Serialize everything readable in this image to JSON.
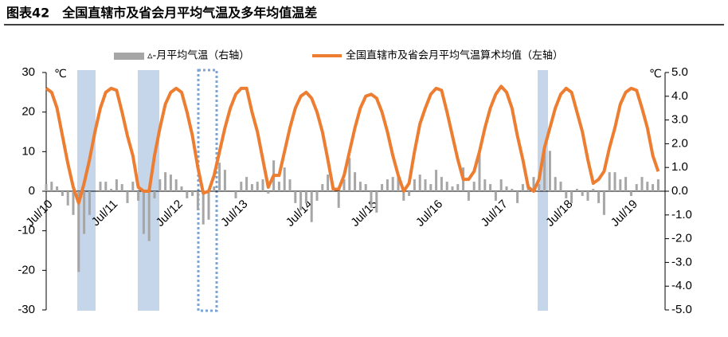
{
  "chart_data": {
    "type": "bar-line",
    "title": "图表42　全国直辖市及省会月平均气温及多年均值温差",
    "categories": [
      "Jul/10",
      null,
      null,
      null,
      null,
      null,
      null,
      null,
      null,
      null,
      null,
      null,
      "Jul/11",
      null,
      null,
      null,
      null,
      null,
      null,
      null,
      null,
      null,
      null,
      null,
      "Jul/12",
      null,
      null,
      null,
      null,
      null,
      null,
      null,
      null,
      null,
      null,
      null,
      "Jul/13",
      null,
      null,
      null,
      null,
      null,
      null,
      null,
      null,
      null,
      null,
      null,
      "Jul/14",
      null,
      null,
      null,
      null,
      null,
      null,
      null,
      null,
      null,
      null,
      null,
      "Jul/15",
      null,
      null,
      null,
      null,
      null,
      null,
      null,
      null,
      null,
      null,
      null,
      "Jul/16",
      null,
      null,
      null,
      null,
      null,
      null,
      null,
      null,
      null,
      null,
      null,
      "Jul/17",
      null,
      null,
      null,
      null,
      null,
      null,
      null,
      null,
      null,
      null,
      null,
      "Jul/18",
      null,
      null,
      null,
      null,
      null,
      null,
      null,
      null,
      null,
      null,
      null,
      "Jul/19",
      null,
      null,
      null,
      null,
      null
    ],
    "series": [
      {
        "name": "▵-月平均气温（右轴）",
        "kind": "bar",
        "axis": "y2",
        "color": "#a6a6a6",
        "values": [
          0.3,
          0.4,
          0.2,
          -0.2,
          -0.6,
          -1,
          -3.4,
          -1.8,
          -1,
          0,
          0.4,
          0.4,
          0.1,
          0.5,
          0.3,
          -0.5,
          0.4,
          -0.4,
          -1.8,
          -2.1,
          -0.3,
          0.5,
          0.8,
          0.7,
          0.5,
          0.2,
          -0.3,
          -0.2,
          -0.8,
          -1.4,
          -1.2,
          0.2,
          1.2,
          0.9,
          0,
          -0.3,
          0.4,
          0.6,
          0.3,
          0.4,
          0.5,
          -0.1,
          1.3,
          0.4,
          1.0,
          0.5,
          -0.5,
          -0.8,
          -0.5,
          -1.3,
          -0.4,
          0.3,
          0.7,
          0.1,
          -0.7,
          0.5,
          1.4,
          0.8,
          0.4,
          0.3,
          -0.7,
          -0.9,
          0.3,
          0.5,
          0.6,
          0.6,
          -0.4,
          -0.2,
          0.5,
          0.7,
          0.5,
          0.3,
          0.9,
          0.6,
          0.4,
          0.2,
          0.3,
          1.0,
          -0.4,
          0.4,
          1.7,
          0.5,
          0.3,
          -0.4,
          0.5,
          0.2,
          0.1,
          -0.5,
          0.3,
          0.3,
          0.6,
          0.3,
          1.7,
          1.7,
          0.6,
          0.4,
          -0.3,
          -0.5,
          0.1,
          -0.2,
          -0.4,
          0.1,
          -0.5,
          -1.0,
          0.8,
          0.8,
          0.5,
          0.6,
          -0.2,
          0.3,
          0.6,
          0.4,
          0.3,
          0.5
        ]
      },
      {
        "name": "全国直辖市及省会月平均气温算术均值（左轴）",
        "kind": "line",
        "color": "#ed7d31",
        "values": [
          26,
          25,
          21,
          14,
          7,
          1,
          -3,
          2,
          8,
          15,
          21,
          25,
          26,
          25.5,
          20,
          14,
          9,
          1,
          0,
          0,
          9,
          16,
          22,
          25,
          26,
          25,
          20,
          14,
          6,
          -0.5,
          0,
          4,
          10,
          16,
          21,
          24.5,
          26,
          26,
          20,
          15,
          8,
          1,
          4,
          4,
          10,
          16,
          21,
          24,
          25,
          23.5,
          20,
          15,
          8,
          0.5,
          0.5,
          4,
          10,
          16,
          21,
          24,
          24.5,
          23.5,
          20,
          15,
          9,
          4,
          0,
          2,
          10,
          17,
          21,
          24.5,
          26,
          25.5,
          20,
          14,
          8,
          3,
          3,
          5,
          10,
          16,
          21,
          24.5,
          26.5,
          25,
          21,
          14,
          8,
          1,
          0,
          3,
          11,
          16,
          21,
          24.5,
          26,
          25,
          20,
          15,
          8,
          2,
          3,
          5,
          11,
          16,
          22,
          25,
          26,
          25.5,
          21,
          16,
          9,
          5
        ]
      }
    ],
    "ylabel": "℃",
    "y2label": "℃",
    "ylim": [
      -30,
      30
    ],
    "yticks": [
      -30,
      -20,
      -10,
      0,
      10,
      20,
      30
    ],
    "y2lim": [
      -5,
      5
    ],
    "y2ticks": [
      {
        "value": -5,
        "label": "-5.0"
      },
      {
        "value": -4,
        "label": "-4.0"
      },
      {
        "value": -3,
        "label": "-3.0"
      },
      {
        "value": -2,
        "label": "-2.0"
      },
      {
        "value": -1,
        "label": "-1.0"
      },
      {
        "value": 0,
        "label": "0.0"
      },
      {
        "value": 1,
        "label": "1.0"
      },
      {
        "value": 2,
        "label": "2.0"
      },
      {
        "value": 3,
        "label": "3.0"
      },
      {
        "value": 4,
        "label": "4.0"
      },
      {
        "value": 5,
        "label": "5.0"
      }
    ]
  }
}
